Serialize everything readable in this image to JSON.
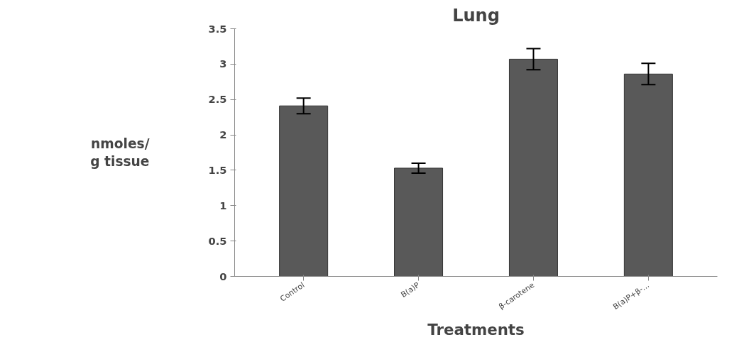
{
  "chart_data": {
    "type": "bar",
    "title": "Lung",
    "xlabel": "Treatments",
    "ylabel": "nmoles/\ng tissue",
    "categories": [
      "Control",
      "B(a)P",
      "β-carotene",
      "B(a)P+β-…"
    ],
    "values": [
      2.41,
      1.53,
      3.07,
      2.86
    ],
    "errors": [
      0.11,
      0.07,
      0.15,
      0.15
    ],
    "color": "#595959",
    "ylim": [
      0,
      3.5
    ],
    "yticks": [
      0,
      0.5,
      1,
      1.5,
      2,
      2.5,
      3,
      3.5
    ],
    "grid": false
  }
}
